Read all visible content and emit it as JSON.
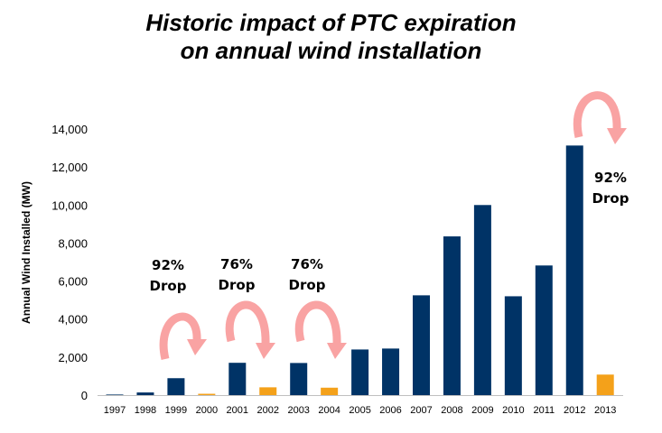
{
  "chart_data": {
    "type": "bar",
    "title_line1": "Historic impact of PTC expiration",
    "title_line2": "on annual wind installation",
    "xlabel": "",
    "ylabel": "Annual Wind Installed (MW)",
    "ylim": [
      0,
      14000
    ],
    "yticks": [
      "0",
      "2,000",
      "4,000",
      "6,000",
      "8,000",
      "10,000",
      "12,000",
      "14,000"
    ],
    "categories": [
      "1997",
      "1998",
      "1999",
      "2000",
      "2001",
      "2002",
      "2003",
      "2004",
      "2005",
      "2006",
      "2007",
      "2008",
      "2009",
      "2010",
      "2011",
      "2012",
      "2013"
    ],
    "values": [
      30,
      140,
      890,
      70,
      1700,
      410,
      1690,
      390,
      2400,
      2450,
      5250,
      8350,
      10000,
      5200,
      6820,
      13130,
      1080
    ],
    "bar_colors": {
      "normal": "#003366",
      "drop": "#f4a11a"
    },
    "drop_years": [
      "2000",
      "2002",
      "2004",
      "2013"
    ],
    "grid": false,
    "legend": "none",
    "annotations": [
      {
        "line1": "92%",
        "line2": "Drop",
        "from": "1999",
        "to": "2000"
      },
      {
        "line1": "76%",
        "line2": "Drop",
        "from": "2001",
        "to": "2002"
      },
      {
        "line1": "76%",
        "line2": "Drop",
        "from": "2003",
        "to": "2004"
      },
      {
        "line1": "92%",
        "line2": "Drop",
        "from": "2012",
        "to": "2013"
      }
    ],
    "arrow_color": "#f9a3a3"
  }
}
